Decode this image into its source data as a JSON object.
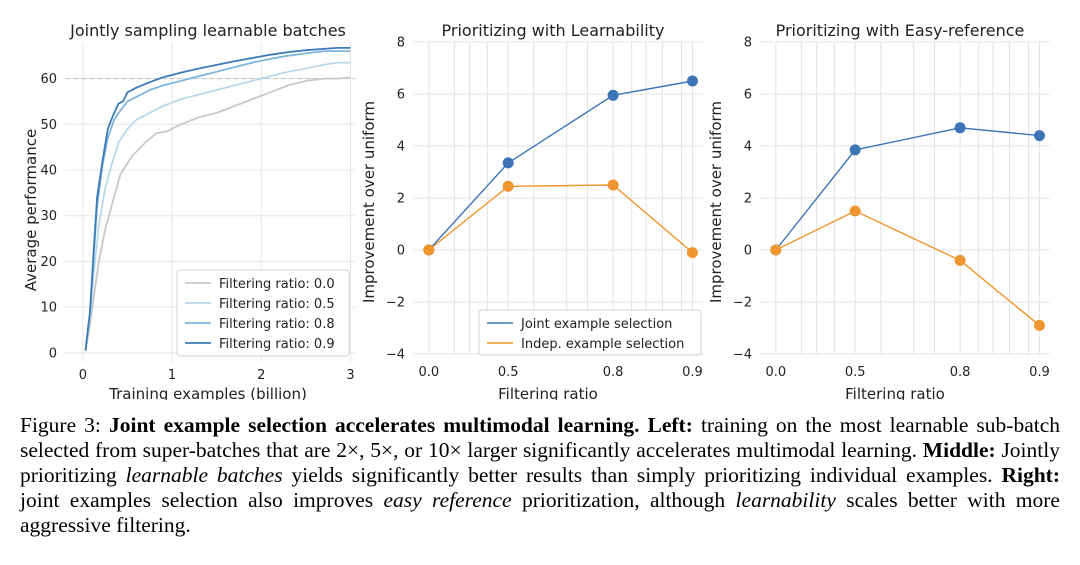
{
  "chart_data": [
    {
      "type": "line",
      "title": "Jointly sampling learnable batches",
      "xlabel": "Training examples (billion)",
      "ylabel": "Average performance",
      "xlim": [
        -0.2,
        3.05
      ],
      "ylim": [
        -2,
        68
      ],
      "xticks": [
        0,
        1,
        2,
        3
      ],
      "yticks": [
        0,
        10,
        20,
        30,
        40,
        50,
        60
      ],
      "reference_line": 60,
      "grid": true,
      "legend_position": "lower right",
      "series": [
        {
          "name": "Filtering ratio: 0.0",
          "color": "#c8c8c8",
          "x": [
            0.03,
            0.08,
            0.12,
            0.18,
            0.25,
            0.32,
            0.42,
            0.55,
            0.7,
            0.82,
            0.95,
            1.1,
            1.3,
            1.5,
            1.7,
            1.9,
            2.1,
            2.3,
            2.5,
            2.7,
            2.85,
            3.0
          ],
          "y": [
            0.5,
            6,
            12,
            20,
            27,
            32,
            39,
            43,
            46,
            48,
            48.5,
            50,
            51.5,
            52.5,
            54,
            55.5,
            57,
            58.5,
            59.5,
            60,
            60,
            60.2
          ]
        },
        {
          "name": "Filtering ratio: 0.5",
          "color": "#b9d8ec",
          "x": [
            0.03,
            0.08,
            0.12,
            0.18,
            0.25,
            0.32,
            0.4,
            0.5,
            0.6,
            0.75,
            0.9,
            1.1,
            1.3,
            1.5,
            1.7,
            1.9,
            2.1,
            2.3,
            2.5,
            2.7,
            2.85,
            3.0
          ],
          "y": [
            0.5,
            8,
            17,
            28,
            36,
            41,
            46,
            49,
            51,
            52.5,
            54,
            55.5,
            56.5,
            57.5,
            58.5,
            59.5,
            60.5,
            61.5,
            62.2,
            63,
            63.5,
            63.5
          ]
        },
        {
          "name": "Filtering ratio: 0.8",
          "color": "#7fb6de",
          "x": [
            0.03,
            0.08,
            0.12,
            0.16,
            0.22,
            0.28,
            0.35,
            0.42,
            0.5,
            0.6,
            0.75,
            0.9,
            1.1,
            1.3,
            1.5,
            1.7,
            1.9,
            2.1,
            2.3,
            2.5,
            2.7,
            2.85,
            3.0
          ],
          "y": [
            0.5,
            9,
            21,
            32,
            41,
            47,
            51,
            53,
            55,
            56,
            57.5,
            58.5,
            59.5,
            60.5,
            61.5,
            62.5,
            63.5,
            64.3,
            65,
            65.5,
            66,
            66,
            66
          ]
        },
        {
          "name": "Filtering ratio: 0.9",
          "color": "#3d7bb8",
          "x": [
            0.03,
            0.08,
            0.12,
            0.16,
            0.22,
            0.28,
            0.34,
            0.4,
            0.45,
            0.5,
            0.6,
            0.75,
            0.9,
            1.1,
            1.3,
            1.5,
            1.7,
            1.9,
            2.1,
            2.3,
            2.5,
            2.7,
            2.85,
            3.0
          ],
          "y": [
            0.5,
            9,
            22,
            34,
            42,
            49,
            52,
            54.5,
            55,
            57,
            58,
            59.2,
            60.3,
            61.3,
            62.2,
            63,
            63.8,
            64.5,
            65.2,
            65.8,
            66.2,
            66.5,
            66.7,
            66.7
          ]
        }
      ]
    },
    {
      "type": "line",
      "title": "Prioritizing with Learnability",
      "xlabel": "Filtering ratio",
      "ylabel": "Improvement over uniform",
      "x_scale": "log(1 - x)",
      "xticks": [
        "0.0",
        "0.5",
        "0.8",
        "0.9"
      ],
      "yticks": [
        -4,
        -2,
        0,
        2,
        4,
        6,
        8
      ],
      "ylim": [
        -4,
        8
      ],
      "grid": true,
      "legend_position": "lower right",
      "series": [
        {
          "name": "Joint example selection",
          "color": "#3d74b5",
          "x": [
            0.0,
            0.5,
            0.8,
            0.9
          ],
          "y": [
            0.0,
            3.35,
            5.95,
            6.5
          ]
        },
        {
          "name": "Indep. example selection",
          "color": "#f0962e",
          "x": [
            0.0,
            0.5,
            0.8,
            0.9
          ],
          "y": [
            0.0,
            2.45,
            2.5,
            -0.1
          ]
        }
      ]
    },
    {
      "type": "line",
      "title": "Prioritizing with Easy-reference",
      "xlabel": "Filtering ratio",
      "ylabel": "Improvement over uniform",
      "x_scale": "log(1 - x)",
      "xticks": [
        "0.0",
        "0.5",
        "0.8",
        "0.9"
      ],
      "yticks": [
        -4,
        -2,
        0,
        2,
        4,
        6,
        8
      ],
      "ylim": [
        -4,
        8
      ],
      "grid": true,
      "series": [
        {
          "color": "#3d74b5",
          "x": [
            0.0,
            0.5,
            0.8,
            0.9
          ],
          "y": [
            0.0,
            3.85,
            4.7,
            4.4
          ]
        },
        {
          "color": "#f0962e",
          "x": [
            0.0,
            0.5,
            0.8,
            0.9
          ],
          "y": [
            0.0,
            1.5,
            -0.4,
            -2.9
          ]
        }
      ]
    }
  ],
  "caption": {
    "label": "Figure 3: ",
    "title": "Joint example selection accelerates multimodal learning.",
    "left_head": "Left:",
    "left_text": " training on the most learnable sub-batch selected from super-batches that are 2×, 5×, or 10× larger significantly accelerates multimodal learning. ",
    "middle_head": "Middle:",
    "middle_text_1": " Jointly prioritizing ",
    "middle_em": "learnable batches",
    "middle_text_2": " yields significantly better results than simply prioritizing individual examples. ",
    "right_head": "Right:",
    "right_text_1": " joint examples selection also improves ",
    "right_em_1": "easy reference",
    "right_text_2": " prioritization, although ",
    "right_em_2": "learnability",
    "right_text_3": " scales better with more aggressive filtering."
  }
}
